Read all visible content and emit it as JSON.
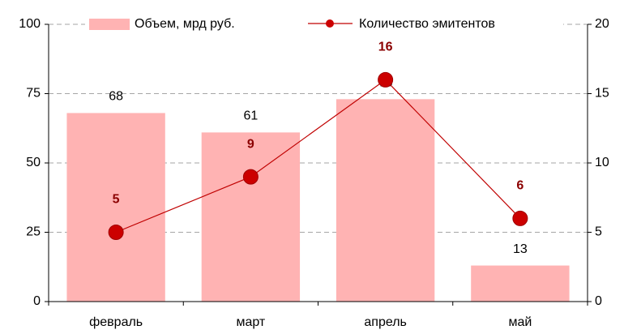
{
  "chart_data": {
    "type": "bar",
    "categories": [
      "февраль",
      "март",
      "апрель",
      "май"
    ],
    "series": [
      {
        "name": "Объем, мрд руб.",
        "type": "bar",
        "color": "#ffb3b3",
        "values": [
          68,
          61,
          73,
          13
        ]
      },
      {
        "name": "Количество эмитентов",
        "type": "line",
        "axis": "y2",
        "color": "#c00000",
        "values": [
          5,
          9,
          16,
          6
        ]
      }
    ],
    "ylim": [
      0,
      100
    ],
    "yticks": [
      0,
      25,
      50,
      75,
      100
    ],
    "y2lim": [
      0,
      20
    ],
    "y2ticks": [
      0,
      5,
      10,
      15,
      20
    ],
    "grid": true,
    "legend": "top"
  }
}
